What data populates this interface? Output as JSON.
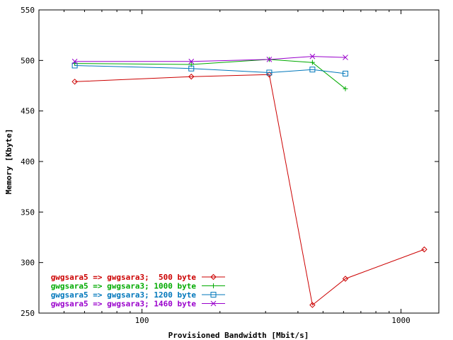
{
  "chart_data": {
    "type": "line",
    "xlabel": "Provisioned Bandwidth [Mbit/s]",
    "ylabel": "Memory [Kbyte]",
    "xscale": "log",
    "xlim": [
      40,
      1400
    ],
    "ylim": [
      250,
      550
    ],
    "x_ticks": [
      100,
      1000
    ],
    "x_tick_labels": [
      "100",
      "1000"
    ],
    "y_ticks": [
      250,
      300,
      350,
      400,
      450,
      500,
      550
    ],
    "y_tick_labels": [
      "250",
      "300",
      "350",
      "400",
      "450",
      "500",
      "550"
    ],
    "grid": false,
    "legend_position": "bottom-left",
    "series": [
      {
        "name": "gwgsara5 => gwgsara3;  500 byte",
        "color": "#cc0000",
        "marker": "diamond",
        "x": [
          55,
          155,
          310,
          455,
          610,
          1230
        ],
        "y": [
          479,
          484,
          486,
          258,
          284,
          313
        ]
      },
      {
        "name": "gwgsara5 => gwgsara3; 1000 byte",
        "color": "#00aa00",
        "marker": "plus",
        "x": [
          55,
          155,
          310,
          455,
          610
        ],
        "y": [
          497,
          496,
          501,
          498,
          472
        ]
      },
      {
        "name": "gwgsara5 => gwgsara3; 1200 byte",
        "color": "#0077bb",
        "marker": "square",
        "x": [
          55,
          155,
          310,
          455,
          610
        ],
        "y": [
          495,
          492,
          488,
          491,
          487
        ]
      },
      {
        "name": "gwgsara5 => gwgsara3; 1460 byte",
        "color": "#9900cc",
        "marker": "cross",
        "x": [
          55,
          155,
          310,
          455,
          610
        ],
        "y": [
          499,
          499,
          501,
          504,
          503
        ]
      }
    ]
  }
}
